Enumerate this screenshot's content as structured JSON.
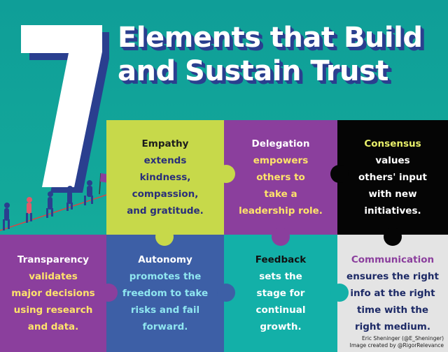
{
  "title": {
    "big_number": "7",
    "line1": "Elements that Build",
    "line2": "and Sustain Trust"
  },
  "colors": {
    "teal": "#13a89a",
    "navy": "#2a3f8f",
    "lime": "#c7d94a",
    "purple": "#8b3f9d",
    "black": "#050505",
    "blue": "#3d5fa6",
    "gray": "#e4e4e4",
    "yellow": "#ffe36b"
  },
  "tiles": {
    "empathy": {
      "head": "Empathy",
      "lines": [
        "extends",
        "kindness,",
        "compassion,",
        "and gratitude."
      ]
    },
    "delegation": {
      "head": "Delegation",
      "lines": [
        "empowers",
        "others to",
        "take a",
        "leadership role."
      ]
    },
    "consensus": {
      "head": "Consensus",
      "lines": [
        "values",
        "others' input",
        "with new",
        "initiatives."
      ]
    },
    "transparency": {
      "head": "Transparency",
      "lines": [
        "validates",
        "major decisions",
        "using research",
        "and data."
      ]
    },
    "autonomy": {
      "head": "Autonomy",
      "lines": [
        "promotes the",
        "freedom to take",
        "risks and fail",
        "forward."
      ]
    },
    "feedback": {
      "head": "Feedback",
      "lines": [
        "sets the",
        "stage for",
        "continual",
        "growth."
      ]
    },
    "communication": {
      "head": "Communication",
      "lines": [
        "ensures the right",
        "info at the right",
        "time with the",
        "right medium."
      ]
    }
  },
  "credit": {
    "line1": "Eric Sheninger (@E_Sheninger)",
    "line2": "Image created by @RigorRelevance"
  }
}
